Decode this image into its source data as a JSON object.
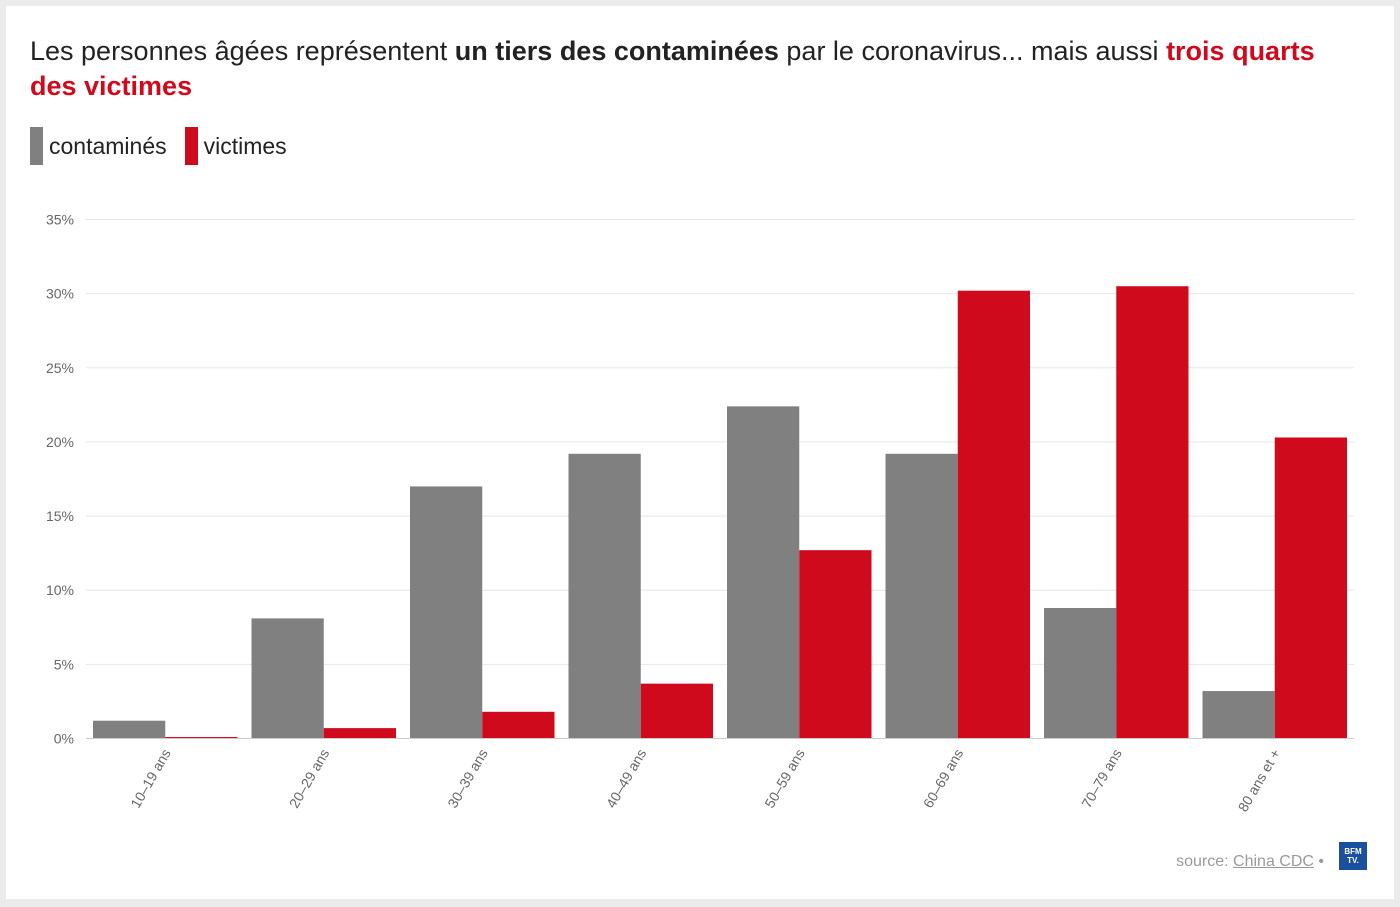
{
  "title": {
    "part1": "Les personnes âgées représentent ",
    "bold1": "un tiers des contaminées",
    "part2": " par le coronavirus... mais aussi ",
    "bold2": "trois quarts des victimes"
  },
  "source": {
    "prefix": "source: ",
    "link": "China CDC",
    "suffix": " •"
  },
  "logo": {
    "alt": "BFM TV",
    "line1": "BFM",
    "line2": "TV."
  },
  "colors": {
    "contamines": "#808080",
    "victimes": "#cf0a1c",
    "grid": "#e6e6e6",
    "tick": "#666666"
  },
  "chart_data": {
    "type": "bar",
    "categories": [
      "10–19 ans",
      "20–29 ans",
      "30–39 ans",
      "40–49 ans",
      "50–59 ans",
      "60–69 ans",
      "70–79 ans",
      "80 ans et +"
    ],
    "series": [
      {
        "name": "contaminés",
        "values": [
          1.2,
          8.1,
          17.0,
          19.2,
          22.4,
          19.2,
          8.8,
          3.2
        ]
      },
      {
        "name": "victimes",
        "values": [
          0.1,
          0.7,
          1.8,
          3.7,
          12.7,
          30.2,
          30.5,
          20.3
        ]
      }
    ],
    "yticks": [
      "0%",
      "5%",
      "10%",
      "15%",
      "20%",
      "25%",
      "30%",
      "35%"
    ],
    "ylim": [
      0,
      35
    ],
    "grid": true,
    "legend_position": "top-left"
  }
}
